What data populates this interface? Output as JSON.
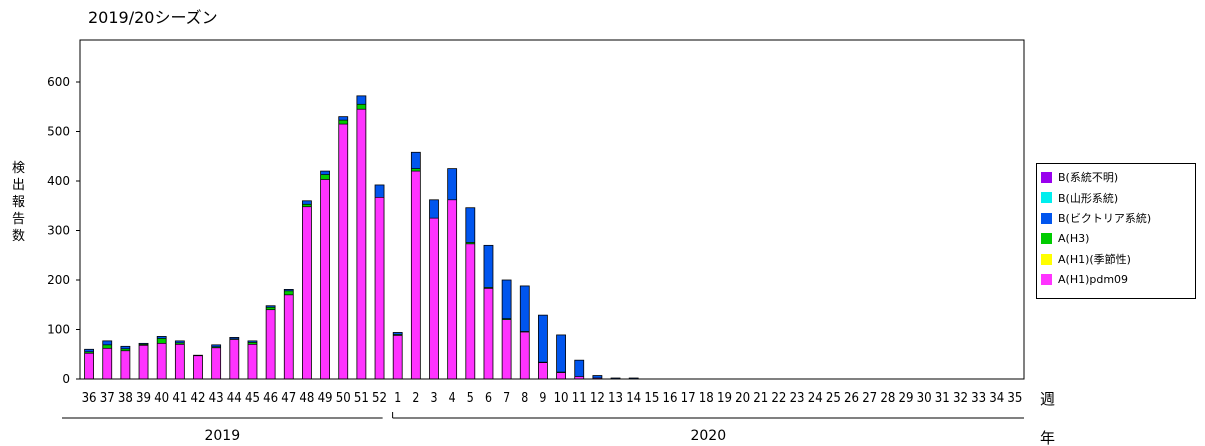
{
  "chart_data": {
    "type": "bar",
    "stacked": true,
    "title": "2019/20シーズン",
    "ylabel": "検出報告数",
    "xlabel": "週",
    "year_axis_label": "年",
    "ylim": [
      0,
      700
    ],
    "yticks": [
      0,
      100,
      200,
      300,
      400,
      500,
      600
    ],
    "categories": [
      "36",
      "37",
      "38",
      "39",
      "40",
      "41",
      "42",
      "43",
      "44",
      "45",
      "46",
      "47",
      "48",
      "49",
      "50",
      "51",
      "52",
      "1",
      "2",
      "3",
      "4",
      "5",
      "6",
      "7",
      "8",
      "9",
      "10",
      "11",
      "12",
      "13",
      "14",
      "15",
      "16",
      "17",
      "18",
      "19",
      "20",
      "21",
      "22",
      "23",
      "24",
      "25",
      "26",
      "27",
      "28",
      "29",
      "30",
      "31",
      "32",
      "33",
      "34",
      "35"
    ],
    "years": [
      {
        "label": "2019",
        "from": 0,
        "to": 16
      },
      {
        "label": "2020",
        "from": 17,
        "to": 51
      }
    ],
    "series": [
      {
        "name": "A(H1)pdm09",
        "color": "#ff33ff",
        "values": [
          52,
          62,
          57,
          68,
          72,
          70,
          47,
          63,
          80,
          70,
          140,
          170,
          348,
          403,
          515,
          545,
          367,
          88,
          420,
          325,
          362,
          273,
          183,
          120,
          95,
          33,
          13,
          5,
          2,
          0,
          0,
          0,
          0,
          0,
          0,
          0,
          0,
          0,
          0,
          0,
          0,
          0,
          0,
          0,
          0,
          0,
          0,
          0,
          0,
          0,
          0,
          0
        ]
      },
      {
        "name": "A(H1)(季節性)",
        "color": "#ffff00",
        "values": [
          0,
          0,
          0,
          0,
          0,
          0,
          0,
          0,
          0,
          0,
          0,
          0,
          0,
          0,
          0,
          0,
          0,
          0,
          0,
          0,
          0,
          0,
          0,
          0,
          0,
          0,
          0,
          0,
          0,
          0,
          0,
          0,
          0,
          0,
          0,
          0,
          0,
          0,
          0,
          0,
          0,
          0,
          0,
          0,
          0,
          0,
          0,
          0,
          0,
          0,
          0,
          0
        ]
      },
      {
        "name": "A(H3)",
        "color": "#00cc00",
        "values": [
          3,
          7,
          4,
          2,
          10,
          3,
          0,
          2,
          1,
          4,
          5,
          8,
          5,
          10,
          8,
          10,
          0,
          2,
          5,
          0,
          0,
          3,
          2,
          2,
          1,
          1,
          1,
          0,
          0,
          0,
          0,
          0,
          0,
          0,
          0,
          0,
          0,
          0,
          0,
          0,
          0,
          0,
          0,
          0,
          0,
          0,
          0,
          0,
          0,
          0,
          0,
          0
        ]
      },
      {
        "name": "B(ビクトリア系統)",
        "color": "#0055ee",
        "values": [
          5,
          8,
          5,
          2,
          4,
          4,
          1,
          4,
          3,
          3,
          3,
          3,
          7,
          7,
          7,
          17,
          25,
          4,
          33,
          37,
          63,
          70,
          85,
          78,
          92,
          95,
          75,
          33,
          5,
          2,
          2,
          0,
          0,
          0,
          0,
          0,
          0,
          0,
          0,
          0,
          0,
          0,
          0,
          0,
          0,
          0,
          0,
          0,
          0,
          0,
          0,
          0
        ]
      },
      {
        "name": "B(山形系統)",
        "color": "#00eeee",
        "values": [
          0,
          0,
          0,
          0,
          0,
          0,
          0,
          0,
          0,
          0,
          0,
          0,
          0,
          0,
          0,
          0,
          0,
          0,
          0,
          0,
          0,
          0,
          0,
          0,
          0,
          0,
          0,
          0,
          0,
          0,
          0,
          0,
          0,
          0,
          0,
          0,
          0,
          0,
          0,
          0,
          0,
          0,
          0,
          0,
          0,
          0,
          0,
          0,
          0,
          0,
          0,
          0
        ]
      },
      {
        "name": "B(系統不明)",
        "color": "#9900ee",
        "values": [
          0,
          0,
          0,
          0,
          0,
          0,
          0,
          0,
          0,
          0,
          0,
          0,
          0,
          0,
          0,
          0,
          0,
          0,
          0,
          0,
          0,
          0,
          0,
          0,
          0,
          0,
          0,
          0,
          0,
          0,
          0,
          0,
          0,
          0,
          0,
          0,
          0,
          0,
          0,
          0,
          0,
          0,
          0,
          0,
          0,
          0,
          0,
          0,
          0,
          0,
          0,
          0
        ]
      }
    ],
    "legend_order": [
      "B(系統不明)",
      "B(山形系統)",
      "B(ビクトリア系統)",
      "A(H3)",
      "A(H1)(季節性)",
      "A(H1)pdm09"
    ],
    "legend_position": "right",
    "grid": false
  }
}
